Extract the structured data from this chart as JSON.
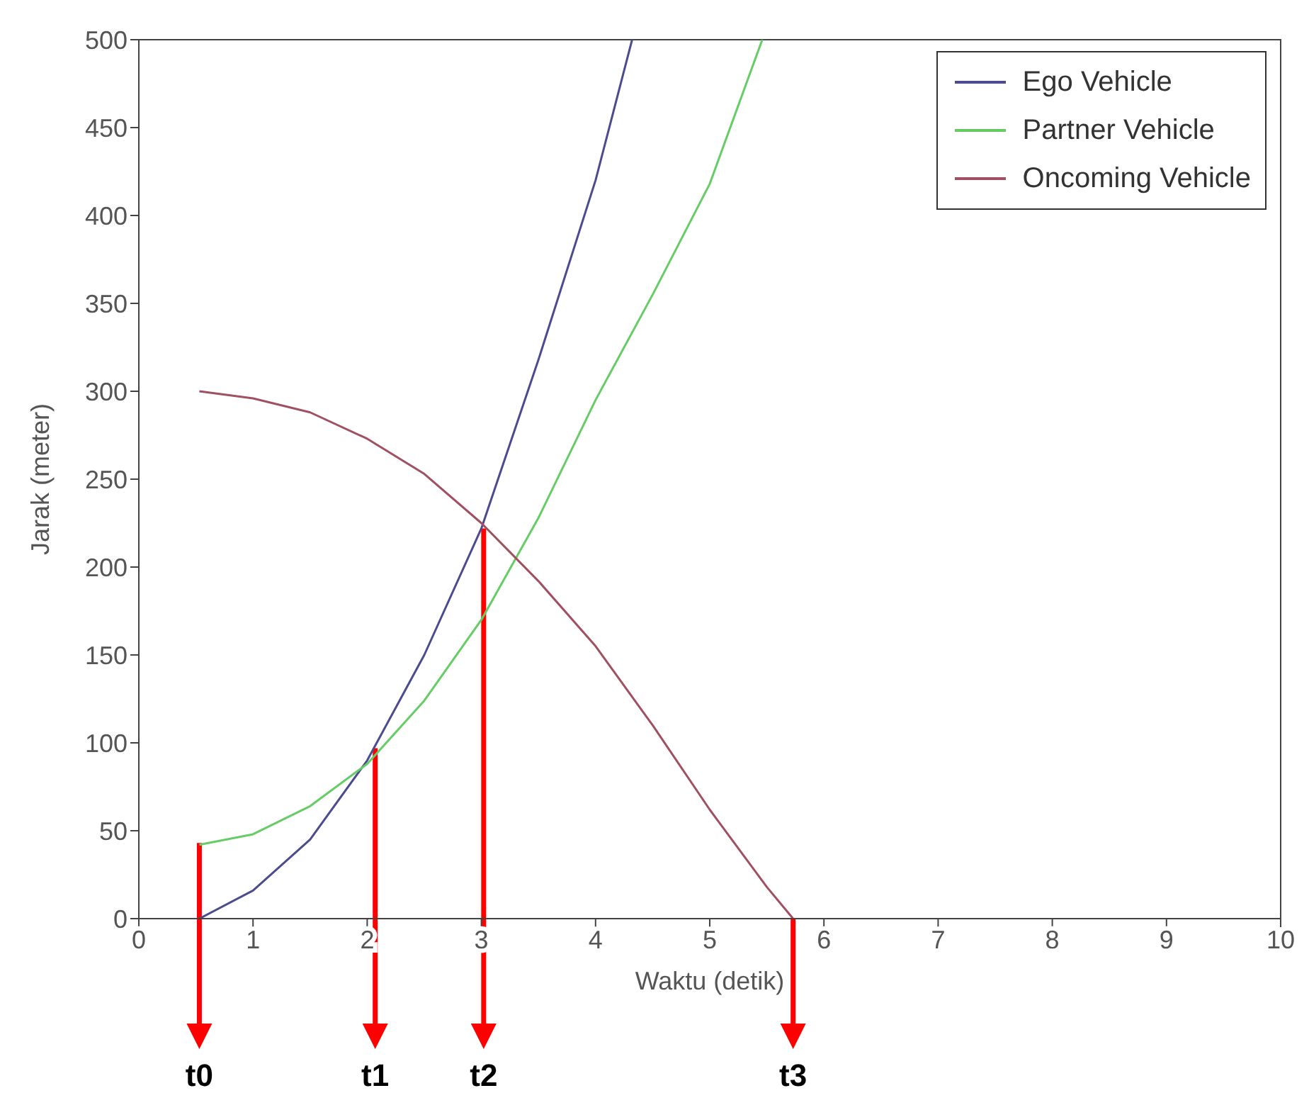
{
  "chart_data": {
    "type": "line",
    "xlabel": "Waktu (detik)",
    "ylabel": "Jarak (meter)",
    "xlim": [
      0,
      10
    ],
    "xticks": [
      0,
      1,
      2,
      3,
      4,
      5,
      6,
      7,
      8,
      9,
      10
    ],
    "ylim": [
      0,
      500
    ],
    "yticks": [
      0,
      50,
      100,
      150,
      200,
      250,
      300,
      350,
      400,
      450,
      500
    ],
    "grid": false,
    "legend": "top right",
    "marker": "none",
    "line_style": "solid",
    "series": [
      {
        "name": "Ego Vehicle",
        "color": "#4b4b8f",
        "x": [
          0.53,
          1,
          1.5,
          2,
          2.5,
          3,
          3.5,
          4,
          4.32
        ],
        "values": [
          0,
          16,
          45,
          90,
          150,
          222,
          318,
          420,
          500
        ]
      },
      {
        "name": "Partner Vehicle",
        "color": "#66cc66",
        "x": [
          0.53,
          1,
          1.5,
          2,
          2.5,
          3,
          3.5,
          4,
          4.5,
          5,
          5.46
        ],
        "values": [
          42,
          48,
          64,
          88,
          124,
          170,
          228,
          295,
          355,
          418,
          500
        ]
      },
      {
        "name": "Oncoming Vehicle",
        "color": "#a05060",
        "x": [
          0.53,
          1,
          1.5,
          2,
          2.5,
          3,
          3.5,
          4,
          4.5,
          5,
          5.5,
          5.73
        ],
        "values": [
          300,
          296,
          288,
          273,
          253,
          225,
          192,
          155,
          110,
          62,
          18,
          0
        ]
      }
    ],
    "annotations": [
      {
        "text": "t0",
        "x": 0.53,
        "y": 43
      },
      {
        "text": "t1",
        "x": 2.07,
        "y": 97
      },
      {
        "text": "t2",
        "x": 3.02,
        "y": 222
      },
      {
        "text": "t3",
        "x": 5.73,
        "y": 0
      }
    ]
  }
}
